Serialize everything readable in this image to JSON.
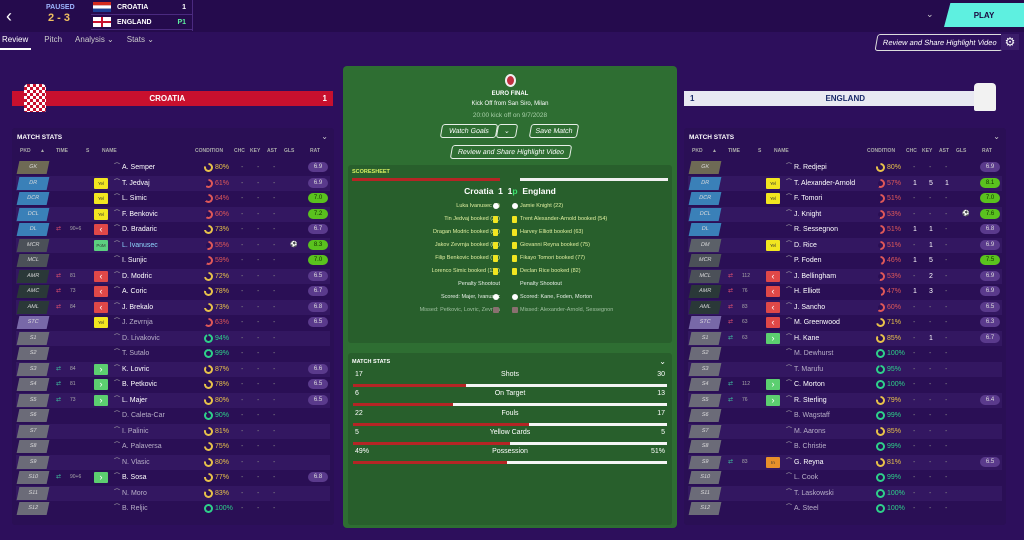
{
  "header": {
    "status": "PAUSED",
    "score": "2 - 3",
    "home": {
      "name": "CROATIA",
      "goals": "1"
    },
    "away": {
      "name": "ENGLAND",
      "goals": "P1"
    },
    "play": "PLAY",
    "share": "Review and Share Highlight Video"
  },
  "nav": [
    "Review",
    "Pitch",
    "Analysis ⌄",
    "Stats ⌄"
  ],
  "colors": {
    "croatia": "#c8102e",
    "england": "#e8e8f2",
    "pitch": "#2e6e32",
    "play": "#5ef0e0",
    "rating_good": "#5ac21e",
    "rating": "#5a3a8c"
  },
  "columns": [
    "PKD",
    "▲",
    "TIME",
    "S",
    "NAME",
    "CONDITION",
    "CHC",
    "KEY",
    "AST",
    "GLS",
    "RAT"
  ],
  "stats_title": "MATCH STATS",
  "home": {
    "name": "CROATIA",
    "score": "1",
    "rows": [
      [
        "GK",
        "",
        "",
        "",
        "A. Semper",
        80,
        "-",
        "-",
        "-",
        "",
        "6.9"
      ],
      [
        "DR",
        "",
        "",
        "Yel",
        "T. Jedvaj",
        61,
        "-",
        "-",
        "-",
        "",
        "6.9"
      ],
      [
        "DCR",
        "",
        "",
        "Yel",
        "L. Simic",
        64,
        "-",
        "-",
        "-",
        "",
        "7.0"
      ],
      [
        "DCL",
        "",
        "",
        "Yel",
        "F. Benkovic",
        60,
        "-",
        "-",
        "-",
        "",
        "7.2"
      ],
      [
        "DL",
        "out",
        "90+6",
        "off",
        "D. Bradaric",
        73,
        "-",
        "-",
        "-",
        "",
        "6.7"
      ],
      [
        "MCR",
        "",
        "",
        "PoM",
        "L. Ivanusec",
        55,
        "-",
        "-",
        "-",
        "⚽",
        "8.3"
      ],
      [
        "MCL",
        "",
        "",
        "",
        "I. Sunjic",
        59,
        "-",
        "-",
        "-",
        "",
        "7.0"
      ],
      [
        "AMR",
        "out",
        "81",
        "off",
        "D. Modric",
        72,
        "-",
        "-",
        "-",
        "",
        "6.5"
      ],
      [
        "AMC",
        "out",
        "73",
        "off",
        "A. Coric",
        78,
        "-",
        "-",
        "-",
        "",
        "6.7"
      ],
      [
        "AML",
        "out",
        "84",
        "off",
        "J. Brekalo",
        73,
        "-",
        "-",
        "-",
        "",
        "6.8"
      ],
      [
        "STC",
        "",
        "",
        "Yel",
        "J. Zevrnja",
        63,
        "-",
        "-",
        "-",
        "",
        "6.5"
      ],
      [
        "S1",
        "",
        "",
        "",
        "D. Livakovic",
        94,
        "-",
        "-",
        "-",
        "",
        ""
      ],
      [
        "S2",
        "",
        "",
        "",
        "T. Sutalo",
        99,
        "-",
        "-",
        "-",
        "",
        ""
      ],
      [
        "S3",
        "in",
        "84",
        "on",
        "K. Lovric",
        87,
        "-",
        "-",
        "-",
        "",
        "6.6"
      ],
      [
        "S4",
        "in",
        "81",
        "on",
        "B. Petkovic",
        78,
        "-",
        "-",
        "-",
        "",
        "6.5"
      ],
      [
        "S5",
        "in",
        "73",
        "on",
        "L. Majer",
        80,
        "-",
        "-",
        "-",
        "",
        "6.5"
      ],
      [
        "S6",
        "",
        "",
        "",
        "D. Caleta-Car",
        90,
        "-",
        "-",
        "-",
        "",
        ""
      ],
      [
        "S7",
        "",
        "",
        "",
        "I. Palinic",
        81,
        "-",
        "-",
        "-",
        "",
        ""
      ],
      [
        "S8",
        "",
        "",
        "",
        "A. Palaversa",
        75,
        "-",
        "-",
        "-",
        "",
        ""
      ],
      [
        "S9",
        "",
        "",
        "",
        "N. Vlasic",
        80,
        "-",
        "-",
        "-",
        "",
        ""
      ],
      [
        "S10",
        "in",
        "90+6",
        "on",
        "B. Sosa",
        77,
        "-",
        "-",
        "-",
        "",
        "6.8"
      ],
      [
        "S11",
        "",
        "",
        "",
        "N. Moro",
        83,
        "-",
        "-",
        "-",
        "",
        ""
      ],
      [
        "S12",
        "",
        "",
        "",
        "B. Reljic",
        100,
        "-",
        "-",
        "-",
        "",
        ""
      ]
    ]
  },
  "away": {
    "name": "ENGLAND",
    "score": "1",
    "rows": [
      [
        "GK",
        "",
        "",
        "",
        "R. Redjepi",
        80,
        "-",
        "-",
        "-",
        "",
        "6.9"
      ],
      [
        "DR",
        "",
        "",
        "Yel",
        "T. Alexander-Arnold",
        57,
        "1",
        "5",
        "1",
        "",
        "8.1"
      ],
      [
        "DCR",
        "",
        "",
        "Yel",
        "F. Tomori",
        51,
        "-",
        "-",
        "-",
        "",
        "7.0"
      ],
      [
        "DCL",
        "",
        "",
        "",
        "J. Knight",
        53,
        "-",
        "-",
        "-",
        "⚽",
        "7.6"
      ],
      [
        "DL",
        "",
        "",
        "",
        "R. Sessegnon",
        51,
        "1",
        "1",
        "-",
        "",
        "6.8"
      ],
      [
        "DM",
        "",
        "",
        "Yel",
        "D. Rice",
        51,
        "-",
        "1",
        "-",
        "",
        "6.9"
      ],
      [
        "MCR",
        "",
        "",
        "",
        "P. Foden",
        46,
        "1",
        "5",
        "-",
        "",
        "7.5"
      ],
      [
        "MCL",
        "out",
        "112",
        "off",
        "J. Bellingham",
        53,
        "-",
        "2",
        "-",
        "",
        "6.9"
      ],
      [
        "AMR",
        "out",
        "76",
        "off",
        "H. Elliott",
        47,
        "1",
        "3",
        "-",
        "",
        "6.9"
      ],
      [
        "AML",
        "out",
        "83",
        "off",
        "J. Sancho",
        60,
        "-",
        "-",
        "-",
        "",
        "6.5"
      ],
      [
        "STC",
        "out",
        "63",
        "off",
        "M. Greenwood",
        71,
        "-",
        "-",
        "-",
        "",
        "6.3"
      ],
      [
        "S1",
        "in",
        "63",
        "on",
        "H. Kane",
        85,
        "-",
        "1",
        "-",
        "",
        "6.7"
      ],
      [
        "S2",
        "",
        "",
        "",
        "M. Dewhurst",
        100,
        "-",
        "-",
        "-",
        "",
        ""
      ],
      [
        "S3",
        "",
        "",
        "",
        "T. Marufu",
        95,
        "-",
        "-",
        "-",
        "",
        ""
      ],
      [
        "S4",
        "in",
        "112",
        "on",
        "C. Morton",
        100,
        "-",
        "-",
        "-",
        "",
        ""
      ],
      [
        "S5",
        "in",
        "76",
        "on",
        "R. Sterling",
        79,
        "-",
        "-",
        "-",
        "",
        "6.4"
      ],
      [
        "S6",
        "",
        "",
        "",
        "B. Wagstaff",
        99,
        "-",
        "-",
        "-",
        "",
        ""
      ],
      [
        "S7",
        "",
        "",
        "",
        "M. Aarons",
        85,
        "-",
        "-",
        "-",
        "",
        ""
      ],
      [
        "S8",
        "",
        "",
        "",
        "B. Christie",
        99,
        "-",
        "-",
        "-",
        "",
        ""
      ],
      [
        "S9",
        "in",
        "83",
        "In",
        "G. Reyna",
        81,
        "-",
        "-",
        "-",
        "",
        "6.5"
      ],
      [
        "S10",
        "",
        "",
        "",
        "L. Cook",
        99,
        "-",
        "-",
        "-",
        "",
        ""
      ],
      [
        "S11",
        "",
        "",
        "",
        "T. Laskowski",
        100,
        "-",
        "-",
        "-",
        "",
        ""
      ],
      [
        "S12",
        "",
        "",
        "",
        "A. Steel",
        100,
        "-",
        "-",
        "-",
        "",
        ""
      ]
    ]
  },
  "match": {
    "competition": "EURO FINAL",
    "venue": "Kick Off from San Siro, Milan",
    "kickoff": "20:00 kick off on 9/7/2028",
    "watch_goals": "Watch Goals",
    "save_match": "Save Match",
    "share": "Review and Share Highlight Video"
  },
  "scoresheet": {
    "title": "SCORESHEET",
    "home": "Croatia",
    "home_goals": "1",
    "away_goals": "1",
    "pens": "p",
    "away": "England",
    "events": [
      [
        "Luka Ivanusec (3)",
        "goal",
        "Jamie Knight (22)",
        "goal"
      ],
      [
        "Tin Jedvaj booked (35)",
        "yellow",
        "Trent Alexander-Arnold booked (54)",
        "yellow"
      ],
      [
        "Dragan Modric booked (53)",
        "yellow",
        "Harvey Elliott booked (63)",
        "yellow"
      ],
      [
        "Jakov Zevrnja booked (87)",
        "yellow",
        "Giovanni Reyna booked (75)",
        "yellow"
      ],
      [
        "Filip Benkovic booked (73)",
        "yellow",
        "Fikayo Tomori booked (77)",
        "yellow"
      ],
      [
        "Lorenco Simic booked (116)",
        "yellow",
        "Declan Rice booked (82)",
        "yellow"
      ],
      [
        "Penalty Shootout",
        "",
        "Penalty Shootout",
        ""
      ],
      [
        "Scored: Majer, Ivanusec",
        "goal",
        "Scored: Kane, Foden, Morton",
        "goal"
      ],
      [
        "Missed: Petkovic, Lovric, Zevrnja",
        "miss",
        "Missed: Alexander-Arnold, Sessegnon",
        "miss"
      ]
    ]
  },
  "match_stats": {
    "title": "MATCH STATS",
    "rows": [
      {
        "label": "Shots",
        "home": "17",
        "away": "30",
        "home_share": 0.36
      },
      {
        "label": "On Target",
        "home": "6",
        "away": "13",
        "home_share": 0.32
      },
      {
        "label": "Fouls",
        "home": "22",
        "away": "17",
        "home_share": 0.56
      },
      {
        "label": "Yellow Cards",
        "home": "5",
        "away": "5",
        "home_share": 0.5
      },
      {
        "label": "Possession",
        "home": "49%",
        "away": "51%",
        "home_share": 0.49
      }
    ]
  }
}
